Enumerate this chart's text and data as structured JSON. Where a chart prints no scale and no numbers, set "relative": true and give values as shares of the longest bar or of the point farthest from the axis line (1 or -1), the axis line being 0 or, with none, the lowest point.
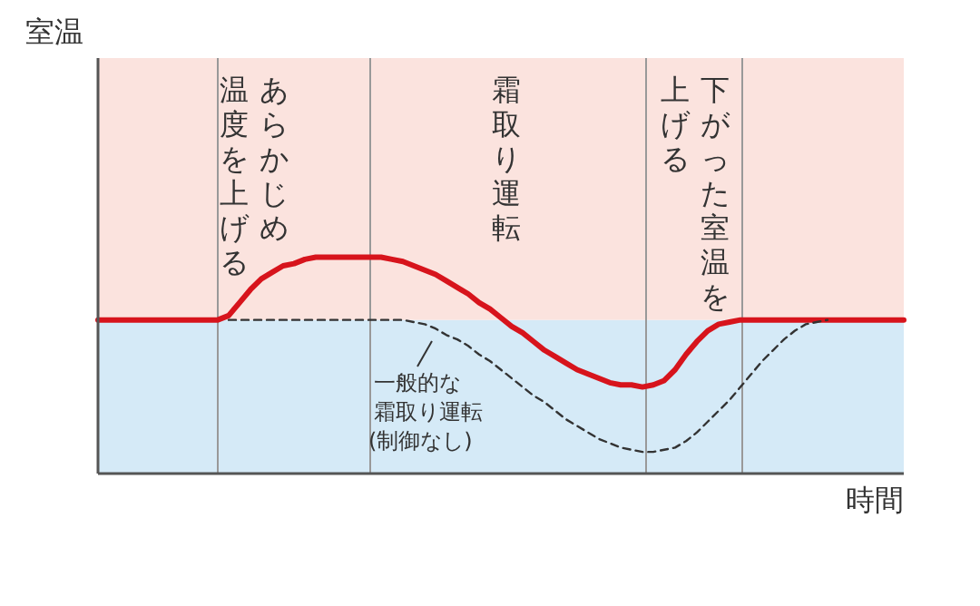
{
  "chart_data": {
    "type": "line",
    "relative": true,
    "xlabel": "時間",
    "categories": [
      null,
      null,
      null,
      null,
      null,
      null,
      null,
      null,
      null,
      null,
      null,
      null,
      null,
      null,
      null,
      null,
      null,
      null,
      null,
      null,
      null,
      null,
      null,
      null,
      null,
      null,
      null,
      null,
      null,
      null,
      null,
      null,
      null,
      null,
      null,
      null,
      null,
      null,
      null,
      null,
      null,
      null,
      null,
      null,
      null,
      null,
      null,
      null,
      null,
      null,
      null,
      null,
      null,
      null,
      null,
      null,
      null,
      null,
      null,
      null,
      null,
      null,
      null,
      null,
      null,
      null,
      null,
      null,
      null,
      null,
      null,
      null,
      null,
      null,
      null
    ],
    "series": [
      {
        "color": "#d7141c",
        "line_style": "solid",
        "values": [
          0.71,
          0.71,
          0.71,
          0.71,
          0.71,
          0.71,
          0.71,
          0.71,
          0.71,
          0.71,
          0.71,
          0.71,
          0.73,
          0.79,
          0.85,
          0.9,
          0.93,
          0.96,
          0.97,
          0.99,
          1.0,
          1.0,
          1.0,
          1.0,
          1.0,
          1.0,
          1.0,
          0.99,
          0.98,
          0.96,
          0.94,
          0.92,
          0.89,
          0.86,
          0.83,
          0.79,
          0.76,
          0.72,
          0.68,
          0.65,
          0.61,
          0.57,
          0.54,
          0.51,
          0.48,
          0.46,
          0.44,
          0.42,
          0.41,
          0.41,
          0.4,
          0.41,
          0.43,
          0.48,
          0.55,
          0.61,
          0.66,
          0.69,
          0.7,
          0.71,
          0.71,
          0.71,
          0.71,
          0.71,
          0.71,
          0.71,
          0.71,
          0.71,
          0.71,
          0.71,
          0.71,
          0.71,
          0.71,
          0.71,
          0.71
        ]
      },
      {
        "color": "#333333",
        "line_style": "dashed",
        "values": [
          null,
          null,
          null,
          null,
          null,
          null,
          null,
          null,
          null,
          null,
          null,
          null,
          0.71,
          0.71,
          0.71,
          0.71,
          0.71,
          0.71,
          0.71,
          0.71,
          0.71,
          0.71,
          0.71,
          0.71,
          0.71,
          0.71,
          0.71,
          0.71,
          0.71,
          0.7,
          0.69,
          0.67,
          0.64,
          0.62,
          0.59,
          0.55,
          0.52,
          0.48,
          0.44,
          0.4,
          0.36,
          0.33,
          0.29,
          0.25,
          0.22,
          0.19,
          0.16,
          0.14,
          0.12,
          0.11,
          0.1,
          0.1,
          0.11,
          0.12,
          0.15,
          0.19,
          0.24,
          0.29,
          0.34,
          0.4,
          0.46,
          0.52,
          0.57,
          0.62,
          0.66,
          0.69,
          0.7,
          0.71,
          null,
          null,
          null,
          null,
          null,
          null,
          null
        ]
      }
    ],
    "bands": [
      {
        "axis": "y",
        "from": 0,
        "to": 0.71,
        "color": "#d5eaf7"
      },
      {
        "axis": "y",
        "from": 0.71,
        "to": 1.92,
        "color": "#fbe3de"
      }
    ],
    "grid": "x",
    "annotations": [
      "室温",
      "あらかじめ",
      "温度を上げる",
      "霜取り運転",
      "下がった室温を",
      "上げる",
      "一般的な",
      "霜取り運転",
      "(制御なし)"
    ]
  }
}
